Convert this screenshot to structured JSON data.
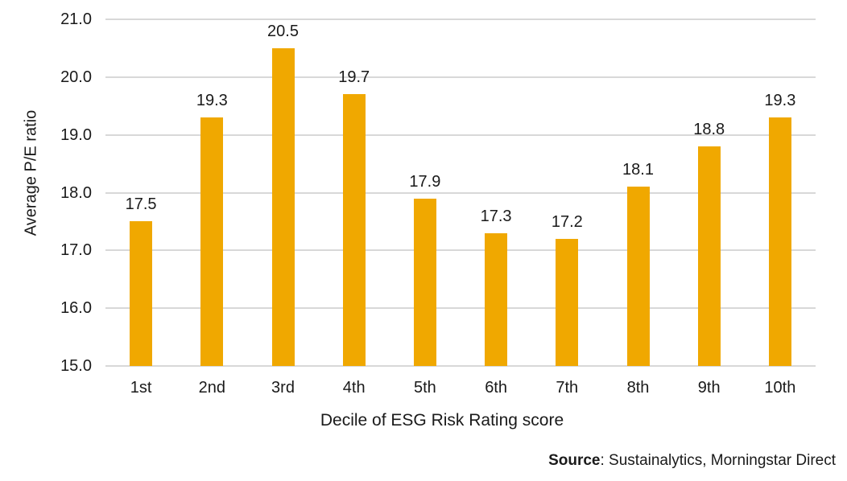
{
  "chart_data": {
    "type": "bar",
    "title": "",
    "categories": [
      "1st",
      "2nd",
      "3rd",
      "4th",
      "5th",
      "6th",
      "7th",
      "8th",
      "9th",
      "10th"
    ],
    "values": [
      17.5,
      19.3,
      20.5,
      19.7,
      17.9,
      17.3,
      17.2,
      18.1,
      18.8,
      19.3
    ],
    "bar_labels": [
      "17.5",
      "19.3",
      "20.5",
      "19.7",
      "17.9",
      "17.3",
      "17.2",
      "18.1",
      "18.8",
      "19.3"
    ],
    "xlabel": "Decile of ESG Risk Rating score",
    "ylabel": "Average P/E ratio",
    "ylim": [
      15.0,
      21.0
    ],
    "yticks": [
      21.0,
      20.0,
      19.0,
      18.0,
      17.0,
      16.0,
      15.0
    ],
    "ytick_labels": [
      "21.0",
      "20.0",
      "19.0",
      "18.0",
      "17.0",
      "16.0",
      "15.0"
    ],
    "grid": true,
    "legend_position": "none",
    "colors": {
      "bar": "#F0A800",
      "gridline": "#D8D8D8",
      "text": "#1A1A1A",
      "background": "#FFFFFF"
    }
  },
  "source_note": {
    "label": "Source",
    "text": ": Sustainalytics, Morningstar Direct"
  }
}
